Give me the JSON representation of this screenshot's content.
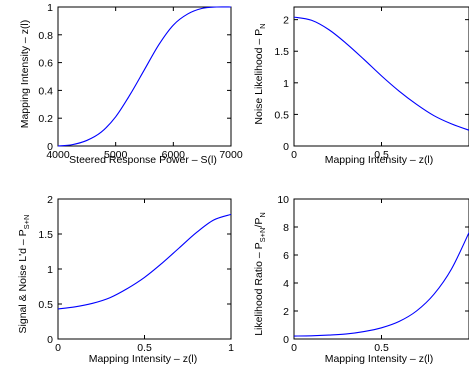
{
  "chart_data": [
    {
      "type": "line",
      "xlabel": "Steered Response Power – S(l)",
      "ylabel": {
        "main": "Mapping Intensity – z(l)",
        "sub": ""
      },
      "xlim": [
        4000,
        7000
      ],
      "ylim": [
        0,
        1
      ],
      "xticks": [
        4000,
        5000,
        6000,
        7000
      ],
      "yticks": [
        0,
        0.2,
        0.4,
        0.6,
        0.8,
        1
      ],
      "xtick_labels": [
        "4000",
        "5000",
        "6000",
        "7000"
      ],
      "ytick_labels": [
        "0",
        "0.2",
        "0.4",
        "0.6",
        "0.8",
        "1"
      ],
      "color": "#0000ff",
      "grid": false,
      "series": [
        {
          "x": [
            4000,
            4250,
            4500,
            4750,
            5000,
            5250,
            5500,
            5750,
            6000,
            6250,
            6500,
            6750,
            7000
          ],
          "y": [
            0.0,
            0.01,
            0.04,
            0.1,
            0.21,
            0.37,
            0.55,
            0.73,
            0.87,
            0.95,
            0.99,
            1.0,
            1.0
          ]
        }
      ]
    },
    {
      "type": "line",
      "xlabel": "Mapping Intensity – z(l)",
      "ylabel": {
        "main": "Noise Likelihood – P",
        "sub": "N"
      },
      "xlim": [
        0,
        1
      ],
      "ylim": [
        0,
        2.2
      ],
      "xticks": [
        0,
        0.5
      ],
      "yticks": [
        0,
        0.5,
        1,
        1.5,
        2
      ],
      "xtick_labels": [
        "0",
        "0.5"
      ],
      "ytick_labels": [
        "0",
        "0.5",
        "1",
        "1.5",
        "2"
      ],
      "color": "#0000ff",
      "grid": false,
      "series": [
        {
          "x": [
            0,
            0.1,
            0.2,
            0.3,
            0.4,
            0.5,
            0.6,
            0.7,
            0.8,
            0.9,
            1.0
          ],
          "y": [
            2.04,
            1.99,
            1.84,
            1.62,
            1.37,
            1.11,
            0.87,
            0.66,
            0.48,
            0.35,
            0.25
          ]
        }
      ]
    },
    {
      "type": "line",
      "xlabel": "Mapping Intensity – z(l)",
      "ylabel": {
        "main": "Signal & Noise L'd – P",
        "sub": "S+N"
      },
      "xlim": [
        0,
        1
      ],
      "ylim": [
        0,
        2
      ],
      "xticks": [
        0,
        0.5,
        1
      ],
      "yticks": [
        0,
        0.5,
        1,
        1.5,
        2
      ],
      "xtick_labels": [
        "0",
        "0.5",
        "1"
      ],
      "ytick_labels": [
        "0",
        "0.5",
        "1",
        "1.5",
        "2"
      ],
      "color": "#0000ff",
      "grid": false,
      "series": [
        {
          "x": [
            0,
            0.1,
            0.2,
            0.3,
            0.4,
            0.5,
            0.6,
            0.7,
            0.8,
            0.9,
            1.0
          ],
          "y": [
            0.43,
            0.46,
            0.51,
            0.59,
            0.72,
            0.88,
            1.08,
            1.3,
            1.52,
            1.7,
            1.78
          ]
        }
      ]
    },
    {
      "type": "line",
      "xlabel": "Mapping Intensity – z(l)",
      "ylabel": {
        "main": "Likelihood Ratio – P",
        "sub": "S+N",
        "sep": "/P",
        "sub2": "N"
      },
      "xlim": [
        0,
        1
      ],
      "ylim": [
        0,
        10
      ],
      "xticks": [
        0,
        0.5
      ],
      "yticks": [
        0,
        2,
        4,
        6,
        8,
        10
      ],
      "xtick_labels": [
        "0",
        "0.5"
      ],
      "ytick_labels": [
        "0",
        "2",
        "4",
        "6",
        "8",
        "10"
      ],
      "color": "#0000ff",
      "grid": false,
      "series": [
        {
          "x": [
            0,
            0.1,
            0.2,
            0.3,
            0.4,
            0.5,
            0.6,
            0.7,
            0.8,
            0.9,
            1.0
          ],
          "y": [
            0.21,
            0.23,
            0.28,
            0.36,
            0.53,
            0.8,
            1.25,
            2.0,
            3.2,
            5.0,
            7.6
          ]
        }
      ]
    }
  ]
}
